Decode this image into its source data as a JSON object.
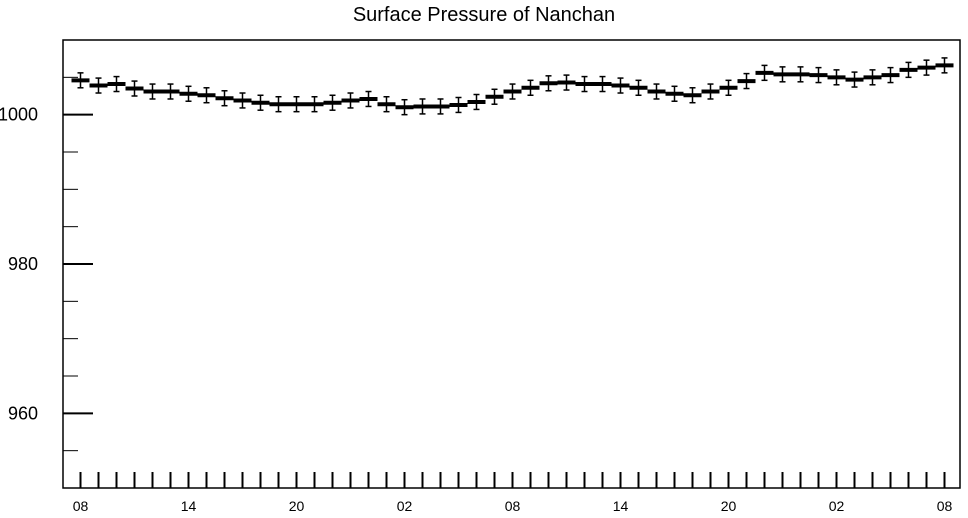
{
  "chart_data": {
    "type": "scatter",
    "title": "Surface Pressure of Nanchan",
    "xlabel": "",
    "ylabel": "",
    "ylim": [
      950,
      1010
    ],
    "y_ticks": [
      960,
      980,
      1000
    ],
    "x_tick_labels": [
      "08",
      "14",
      "20",
      "02",
      "08",
      "14",
      "20",
      "02",
      "08"
    ],
    "grid": false,
    "error_bar": 1,
    "series": [
      {
        "values": [
          1004.6,
          1003.9,
          1004.1,
          1003.5,
          1003.1,
          1003.1,
          1002.8,
          1002.6,
          1002.2,
          1001.9,
          1001.6,
          1001.4,
          1001.4,
          1001.4,
          1001.6,
          1001.9,
          1002.1,
          1001.4,
          1001.0,
          1001.1,
          1001.1,
          1001.3,
          1001.7,
          1002.4,
          1003.1,
          1003.6,
          1004.2,
          1004.3,
          1004.1,
          1004.1,
          1003.9,
          1003.6,
          1003.1,
          1002.8,
          1002.6,
          1003.1,
          1003.6,
          1004.5,
          1005.6,
          1005.4,
          1005.4,
          1005.3,
          1005.0,
          1004.7,
          1005.0,
          1005.3,
          1006.0,
          1006.3,
          1006.6
        ]
      }
    ]
  }
}
